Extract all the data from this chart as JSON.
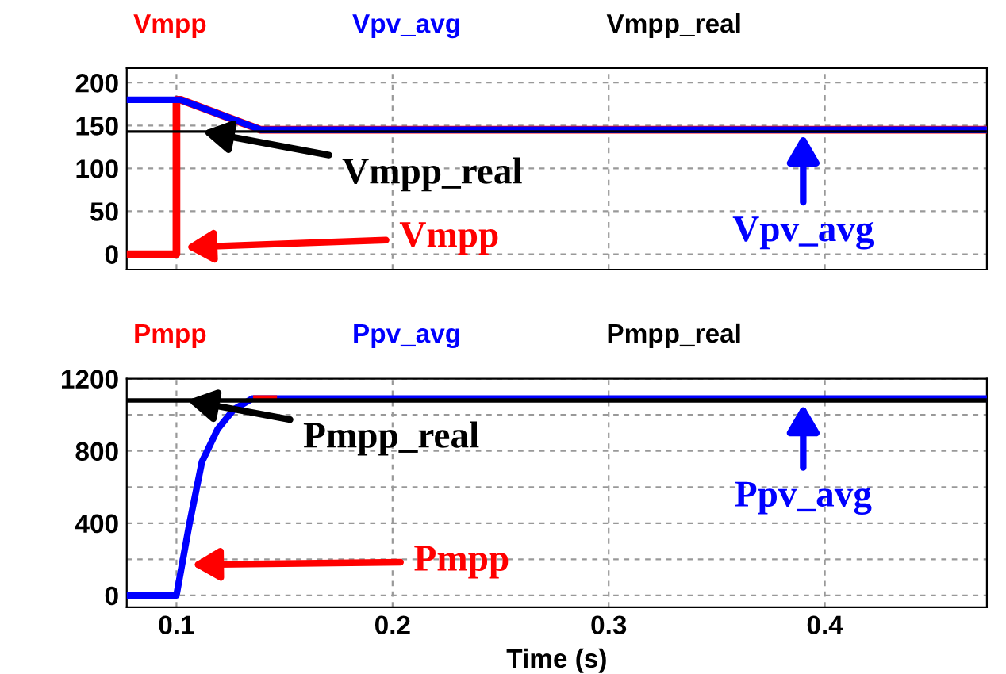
{
  "chart_data": [
    {
      "type": "line",
      "xlim": [
        0.077,
        0.475
      ],
      "xticks": [
        0.1,
        0.2,
        0.3,
        0.4
      ],
      "ylim": [
        -18,
        217
      ],
      "yticks": [
        0,
        50,
        100,
        150,
        200
      ],
      "grid": true,
      "legend": "top",
      "tick_labels": "y",
      "series": [
        {
          "name": "Vmpp",
          "color": "#ff0000",
          "x": [
            0.077,
            0.1,
            0.1,
            0.102,
            0.139,
            0.475
          ],
          "values": [
            0,
            0,
            180,
            180,
            145,
            145
          ]
        },
        {
          "name": "Vpv_avg",
          "color": "#0000ff",
          "x": [
            0.077,
            0.102,
            0.139,
            0.475
          ],
          "values": [
            180,
            180,
            145,
            145
          ]
        },
        {
          "name": "Vmpp_real",
          "color": "#000000",
          "x": [
            0.077,
            0.475
          ],
          "values": [
            143,
            143
          ]
        }
      ],
      "annotations": [
        {
          "text": "Vmpp",
          "x": 0.104,
          "y": 8
        },
        {
          "text": "Vpv_avg",
          "x": 0.39,
          "y": 140
        },
        {
          "text": "Vmpp_real",
          "x": 0.112,
          "y": 143
        }
      ]
    },
    {
      "type": "line",
      "xlim": [
        0.077,
        0.475
      ],
      "xticks": [
        0.1,
        0.2,
        0.3,
        0.4
      ],
      "ylim": [
        -66,
        1200
      ],
      "yticks": [
        0,
        {
          "value": 200,
          "label": null
        },
        400,
        {
          "value": 600,
          "label": null
        },
        800,
        {
          "value": 1000,
          "label": null
        },
        1200
      ],
      "grid": true,
      "legend": "top",
      "xlabel": "Time (s)",
      "series": [
        {
          "name": "Pmpp",
          "color": "#ff0000",
          "x": [
            0.137,
            0.145
          ],
          "values": [
            1090,
            1090
          ]
        },
        {
          "name": "Ppv_avg",
          "color": "#0000ff",
          "x": [
            0.077,
            0.1,
            0.1059,
            0.1118,
            0.119,
            0.1265,
            0.135,
            0.475
          ],
          "values": [
            0,
            0,
            390,
            740,
            920,
            1030,
            1090,
            1090
          ]
        },
        {
          "name": "Pmpp_real",
          "color": "#000000",
          "x": [
            0.077,
            0.475
          ],
          "values": [
            1080,
            1080
          ]
        }
      ],
      "annotations": [
        {
          "text": "Pmpp",
          "x": 0.107,
          "y": 170
        },
        {
          "text": "Ppv_avg",
          "x": 0.39,
          "y": 1060
        },
        {
          "text": "Pmpp_real",
          "x": 0.105,
          "y": 1080
        }
      ]
    }
  ]
}
